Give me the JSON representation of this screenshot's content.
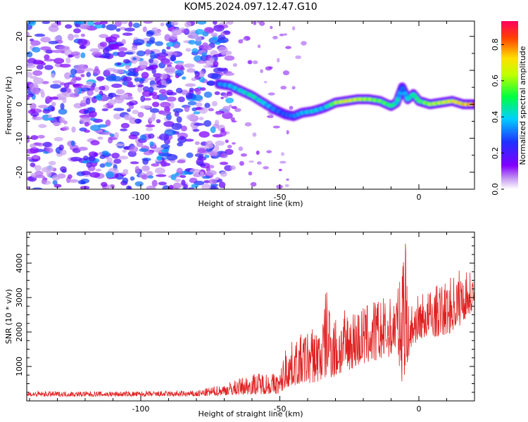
{
  "page": {
    "title": "KOM5.2024.097.12.47.G10"
  },
  "chart_data": [
    {
      "type": "heatmap",
      "title": "KOM5.2024.097.12.47.G10",
      "xlabel": "Height of straight line (km)",
      "ylabel": "Frequency (Hz)",
      "xlim": [
        -141,
        20
      ],
      "ylim": [
        -25,
        24.5
      ],
      "x_ticks": [
        -100,
        -50,
        0
      ],
      "y_ticks": [
        -20,
        -10,
        0,
        10,
        20
      ],
      "colorbar": {
        "label": "Normalized spectral amplitude",
        "range": [
          0,
          0.93
        ],
        "ticks": [
          0.0,
          0.2,
          0.4,
          0.6,
          0.8
        ],
        "colormap": [
          "#ffffff",
          "#c8a0f0",
          "#8000ff",
          "#2030ff",
          "#00d0ff",
          "#00ff40",
          "#c0ff00",
          "#ffe000",
          "#ff4000",
          "#ff0060"
        ]
      },
      "noise_region": {
        "x": [
          -141,
          -71
        ],
        "amplitude": "0.1-0.35"
      },
      "ridge": {
        "x": [
          -72,
          -68,
          -64,
          -60,
          -56,
          -52,
          -48,
          -45,
          -42,
          -38,
          -34,
          -30,
          -26,
          -22,
          -18,
          -14,
          -10,
          -8,
          -6,
          -4,
          -2,
          0,
          4,
          8,
          12,
          16,
          20
        ],
        "y": [
          6,
          5.5,
          4,
          2.5,
          0.5,
          -1.5,
          -3,
          -3.5,
          -2.5,
          -2,
          -1,
          0.5,
          1,
          1.5,
          1.5,
          1,
          -0.5,
          0.5,
          5,
          1.5,
          3,
          1,
          0,
          0.5,
          1,
          0,
          0
        ],
        "amplitude": [
          0.35,
          0.4,
          0.45,
          0.5,
          0.45,
          0.35,
          0.3,
          0.35,
          0.4,
          0.45,
          0.4,
          0.65,
          0.75,
          0.7,
          0.65,
          0.6,
          0.55,
          0.5,
          0.3,
          0.45,
          0.5,
          0.55,
          0.65,
          0.7,
          0.75,
          0.8,
          0.85
        ]
      }
    },
    {
      "type": "line",
      "xlabel": "Height of straight line (km)",
      "ylabel": "SNR (10 * v/v)",
      "xlim": [
        -141,
        20
      ],
      "ylim": [
        0,
        4900
      ],
      "x_ticks": [
        -100,
        -50,
        0
      ],
      "y_ticks": [
        1000,
        2000,
        3000,
        4000
      ],
      "color": "#e02020",
      "envelope": {
        "x": [
          -141,
          -100,
          -80,
          -70,
          -60,
          -55,
          -50,
          -48,
          -45,
          -40,
          -35,
          -33,
          -30,
          -25,
          -20,
          -15,
          -10,
          -8,
          -6,
          -5,
          -4,
          -2,
          0,
          5,
          10,
          15,
          20
        ],
        "lo": [
          130,
          130,
          130,
          160,
          190,
          200,
          200,
          350,
          450,
          500,
          550,
          700,
          650,
          900,
          1050,
          1150,
          1300,
          1500,
          500,
          300,
          1200,
          1600,
          1800,
          1850,
          1900,
          2200,
          2700
        ],
        "hi": [
          280,
          280,
          300,
          500,
          800,
          850,
          800,
          1600,
          1750,
          2100,
          2300,
          3500,
          2500,
          2700,
          2800,
          3000,
          3000,
          3300,
          3600,
          4900,
          2800,
          2900,
          3100,
          3300,
          3500,
          3900,
          3700
        ]
      }
    }
  ]
}
